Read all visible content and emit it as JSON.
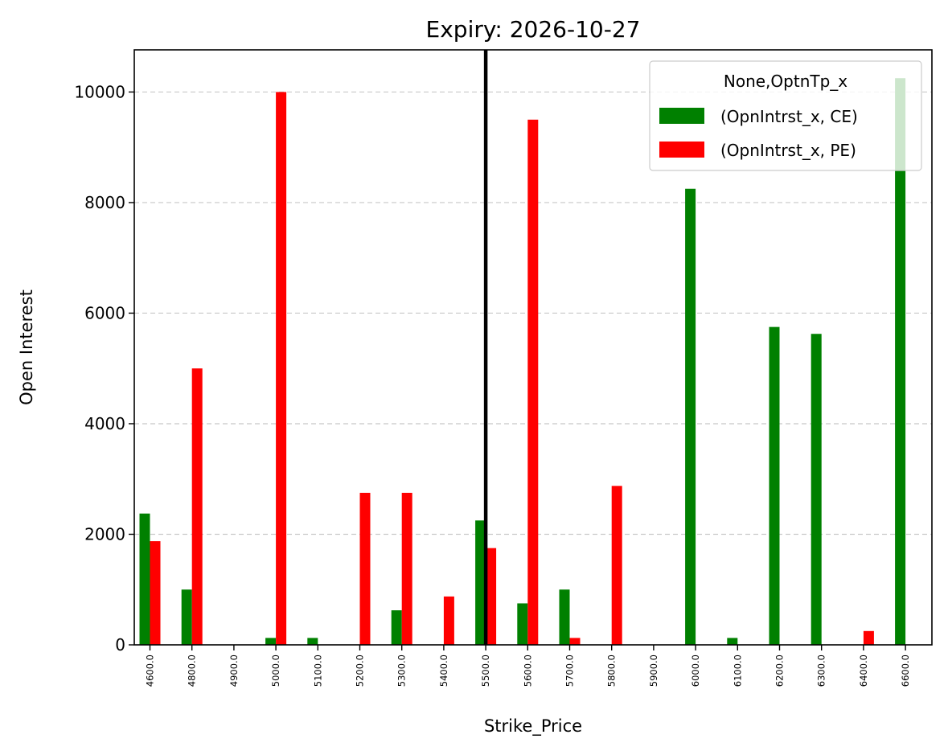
{
  "chart_data": {
    "type": "bar",
    "title": "Expiry: 2026-10-27",
    "xlabel": "Strike_Price",
    "ylabel": "Open Interest",
    "categories": [
      "4600.0",
      "4800.0",
      "4900.0",
      "5000.0",
      "5100.0",
      "5200.0",
      "5300.0",
      "5400.0",
      "5500.0",
      "5600.0",
      "5700.0",
      "5800.0",
      "5900.0",
      "6000.0",
      "6100.0",
      "6200.0",
      "6300.0",
      "6400.0",
      "6600.0"
    ],
    "series": [
      {
        "name": "(OpnIntrst_x, CE)",
        "color": "#008000",
        "values": [
          2375,
          1000,
          0,
          125,
          125,
          0,
          625,
          0,
          2250,
          750,
          1000,
          0,
          0,
          8250,
          125,
          5750,
          5625,
          0,
          10250
        ]
      },
      {
        "name": "(OpnIntrst_x, PE)",
        "color": "#ff0000",
        "values": [
          1875,
          5000,
          0,
          10000,
          0,
          2750,
          2750,
          875,
          1750,
          9500,
          125,
          2875,
          0,
          0,
          0,
          0,
          0,
          250,
          0
        ]
      }
    ],
    "ylim": [
      0,
      10762.5
    ],
    "yticks": [
      0,
      2000,
      4000,
      6000,
      8000,
      10000
    ],
    "grid": "y-dashed",
    "legend": {
      "title": "None,OptnTp_x",
      "position": "top-right"
    },
    "reference_line": {
      "category": "5500.0",
      "color": "#000000"
    }
  }
}
